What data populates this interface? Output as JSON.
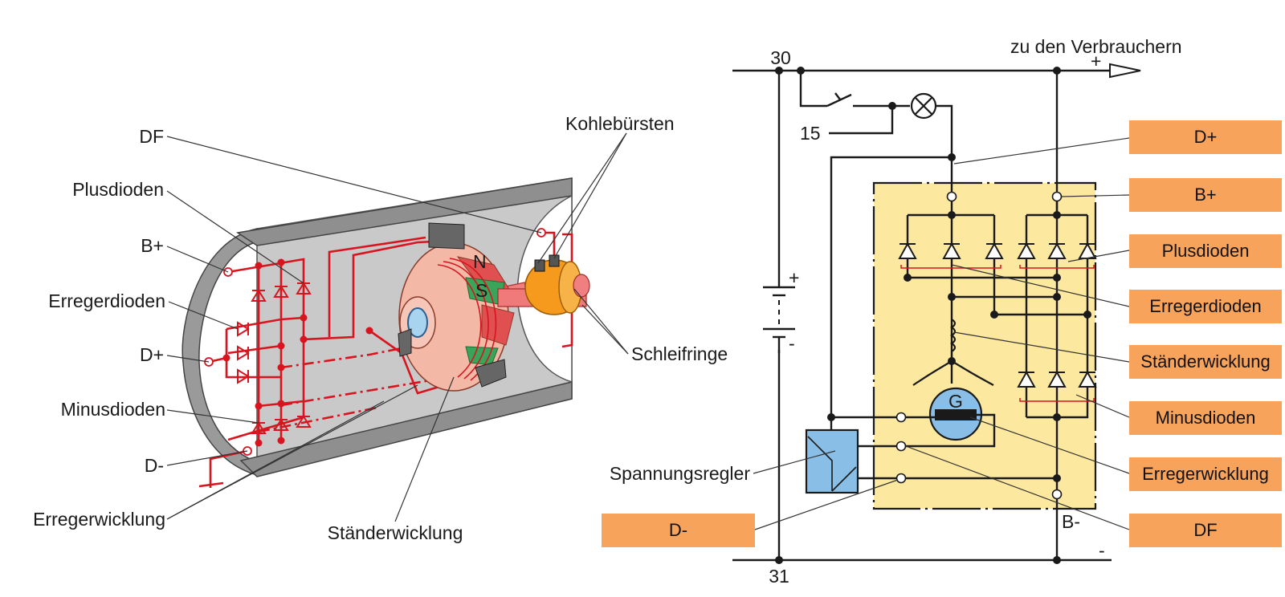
{
  "left_labels": {
    "df": "DF",
    "plusdioden": "Plusdioden",
    "b_plus": "B+",
    "erregerdioden": "Erregerdioden",
    "d_plus": "D+",
    "minusdioden": "Minusdioden",
    "d_minus": "D-",
    "erregerwicklung": "Erregerwicklung",
    "staenderwicklung": "Ständerwicklung",
    "kohlebuersten": "Kohlebürsten",
    "schleifringe": "Schleifringe",
    "rotor_n": "N",
    "rotor_s": "S"
  },
  "circuit": {
    "terminal_30": "30",
    "terminal_15": "15",
    "terminal_31": "31",
    "consumers": "zu den Verbrauchern",
    "plus_sign": "+",
    "minus_sign": "-",
    "battery_plus": "+",
    "battery_minus": "-",
    "generator": "G",
    "b_minus": "B-",
    "spannungsregler": "Spannungsregler"
  },
  "boxes": {
    "d_plus": "D+",
    "b_plus": "B+",
    "plusdioden": "Plusdioden",
    "erregerdioden": "Erregerdioden",
    "staenderwicklung": "Ständerwicklung",
    "minusdioden": "Minusdioden",
    "erregerwicklung": "Erregerwicklung",
    "df": "DF",
    "d_minus": "D-"
  },
  "colors": {
    "box_orange": "#f7a35c",
    "panel_yellow": "#fde8a0",
    "wire_red": "#d8141f",
    "regulator_blue": "#89bfe6",
    "housing_gray": "#c8c8c8"
  }
}
